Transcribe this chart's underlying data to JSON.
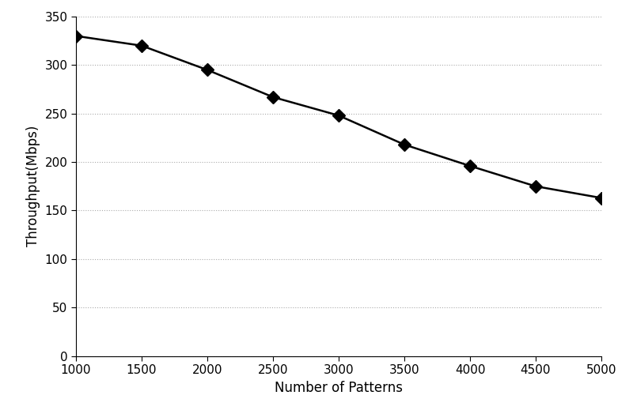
{
  "x": [
    1000,
    1500,
    2000,
    2500,
    3000,
    3500,
    4000,
    4500,
    5000
  ],
  "y": [
    330,
    320,
    295,
    267,
    248,
    218,
    196,
    175,
    163
  ],
  "xlabel": "Number of Patterns",
  "ylabel": "Throughput(Mbps)",
  "xlim": [
    1000,
    5000
  ],
  "ylim": [
    0,
    350
  ],
  "xticks": [
    1000,
    1500,
    2000,
    2500,
    3000,
    3500,
    4000,
    4500,
    5000
  ],
  "yticks": [
    0,
    50,
    100,
    150,
    200,
    250,
    300,
    350
  ],
  "line_color": "#000000",
  "marker": "D",
  "marker_color": "#000000",
  "marker_size": 8,
  "line_width": 1.8,
  "background_color": "#ffffff",
  "grid_color": "#aaaaaa",
  "xlabel_fontsize": 12,
  "ylabel_fontsize": 12,
  "tick_fontsize": 11
}
